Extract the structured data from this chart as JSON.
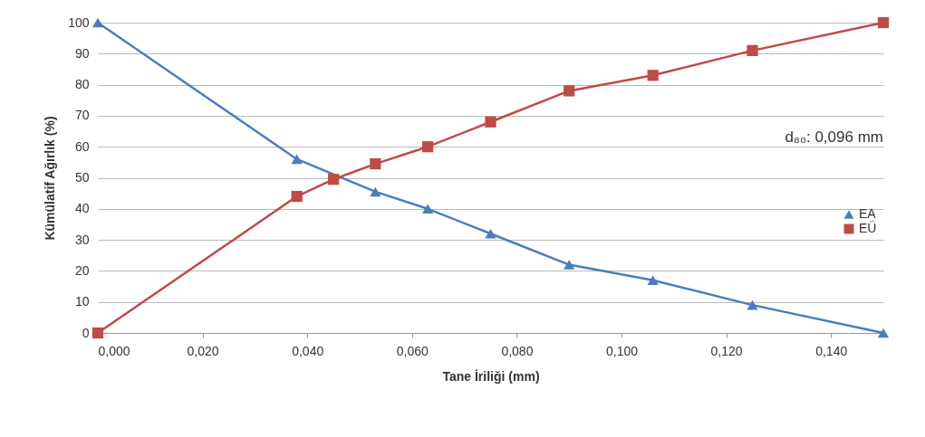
{
  "chart_data": {
    "type": "line",
    "xlabel": "Tane İriliği (mm)",
    "ylabel": "Kümülatif Ağırlık (%)",
    "x": [
      0,
      0.038,
      0.045,
      0.053,
      0.063,
      0.075,
      0.09,
      0.106,
      0.125,
      0.15
    ],
    "series": [
      {
        "name": "EA",
        "color": "#4a7ebb",
        "marker": "triangle",
        "x": [
          0,
          0.038,
          0.053,
          0.063,
          0.075,
          0.09,
          0.106,
          0.125,
          0.15
        ],
        "values": [
          100,
          56,
          45.5,
          40,
          32,
          22,
          17,
          9,
          0
        ]
      },
      {
        "name": "EÜ",
        "color": "#be4b48",
        "marker": "square",
        "values": [
          0,
          44,
          49.5,
          54.5,
          60,
          68,
          78,
          83,
          91,
          100
        ]
      }
    ],
    "xlim": [
      0,
      0.15
    ],
    "xticks": [
      {
        "value": 0,
        "label": "0,000"
      },
      {
        "value": 0.02,
        "label": "0,020"
      },
      {
        "value": 0.04,
        "label": "0,040"
      },
      {
        "value": 0.06,
        "label": "0,060"
      },
      {
        "value": 0.08,
        "label": "0,080"
      },
      {
        "value": 0.1,
        "label": "0,100"
      },
      {
        "value": 0.12,
        "label": "0,120"
      },
      {
        "value": 0.14,
        "label": "0,140"
      }
    ],
    "ylim": [
      0,
      100
    ],
    "yticks": [
      0,
      10,
      20,
      30,
      40,
      50,
      60,
      70,
      80,
      90,
      100
    ],
    "grid": "y",
    "legend": "right",
    "annotations": [
      "d₈₀: 0,096 mm"
    ]
  }
}
